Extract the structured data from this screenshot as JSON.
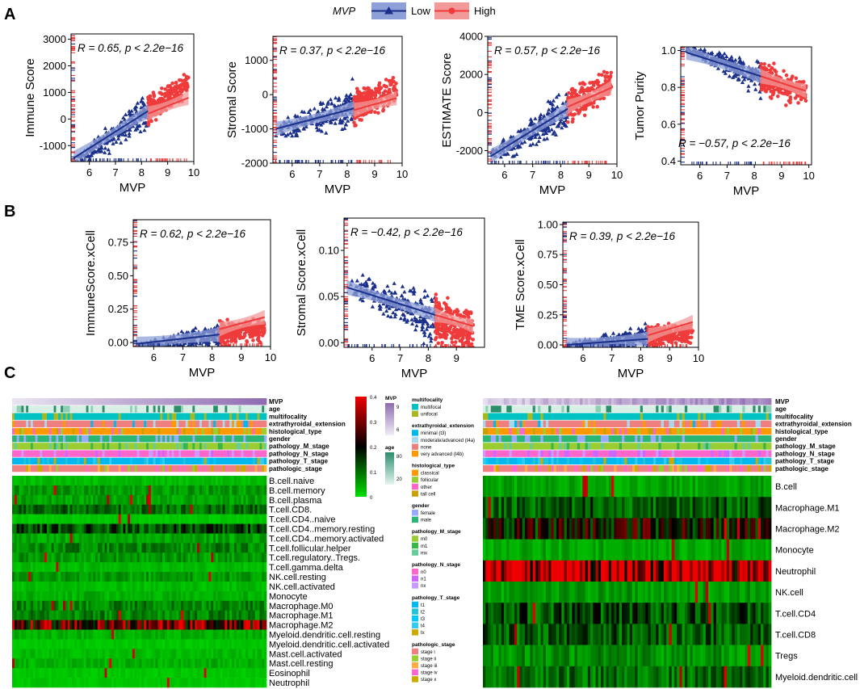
{
  "figure": {
    "panel_letters": [
      "A",
      "B",
      "C"
    ]
  },
  "legend": {
    "title": "MVP",
    "items": [
      {
        "label": "Low",
        "color": "#1a2f8a",
        "band": "#8fa0d8",
        "marker": "triangle"
      },
      {
        "label": "High",
        "color": "#ef3b3b",
        "band": "#f29a9a",
        "marker": "circle"
      }
    ]
  },
  "chart_data": [
    {
      "id": "A1",
      "type": "scatter",
      "panel": "A",
      "xlabel": "MVP",
      "ylabel": "Immune Score",
      "xlim": [
        5.3,
        10
      ],
      "ylim": [
        -1600,
        3200
      ],
      "xticks": [
        6,
        7,
        8,
        9,
        10
      ],
      "yticks": [
        -1000,
        0,
        1000,
        2000,
        3000
      ],
      "r": "0.65",
      "p": "2.2e-16",
      "annotation": "R = 0.65, p < 2.2e−16",
      "annotation_pos": "top-left",
      "cut": 8.25,
      "xrange": [
        5.4,
        9.8
      ],
      "trend": {
        "slope": 680,
        "intercept": -5300
      },
      "noise": 450,
      "lowband": 200,
      "regression": {
        "low": {
          "x": [
            5.4,
            8.25
          ],
          "y": [
            -1470,
            300
          ]
        },
        "high": {
          "x": [
            8.25,
            9.8
          ],
          "y": [
            200,
            800
          ]
        }
      }
    },
    {
      "id": "A2",
      "type": "scatter",
      "panel": "A",
      "xlabel": "MVP",
      "ylabel": "Stromal Score",
      "xlim": [
        5.3,
        10
      ],
      "ylim": [
        -2000,
        1700
      ],
      "xticks": [
        6,
        7,
        8,
        9,
        10
      ],
      "yticks": [
        -2000,
        -1000,
        0,
        1000
      ],
      "r": "0.37",
      "p": "2.2e-16",
      "annotation": "R = 0.37, p < 2.2e−16",
      "annotation_pos": "top-left",
      "cut": 8.25,
      "xrange": [
        5.4,
        9.8
      ],
      "trend": {
        "slope": 270,
        "intercept": -2550
      },
      "noise": 420,
      "lowband": 220,
      "regression": {
        "low": {
          "x": [
            5.4,
            8.25
          ],
          "y": [
            -1000,
            -400
          ]
        },
        "high": {
          "x": [
            8.25,
            9.8
          ],
          "y": [
            -450,
            -100
          ]
        }
      }
    },
    {
      "id": "A3",
      "type": "scatter",
      "panel": "A",
      "xlabel": "MVP",
      "ylabel": "ESTIMATE Score",
      "xlim": [
        5.4,
        10
      ],
      "ylim": [
        -2700,
        4000
      ],
      "xticks": [
        6,
        7,
        8,
        9,
        10
      ],
      "yticks": [
        -2000,
        0,
        2000,
        4000
      ],
      "r": "0.57",
      "p": "2.2e-16",
      "annotation": "R = 0.57, p < 2.2e−16",
      "annotation_pos": "top-left",
      "cut": 8.25,
      "xrange": [
        5.5,
        9.8
      ],
      "trend": {
        "slope": 900,
        "intercept": -7200
      },
      "noise": 750,
      "lowband": 400,
      "regression": {
        "low": {
          "x": [
            5.5,
            8.25
          ],
          "y": [
            -2300,
            200
          ]
        },
        "high": {
          "x": [
            8.25,
            9.8
          ],
          "y": [
            300,
            1300
          ]
        }
      }
    },
    {
      "id": "A4",
      "type": "scatter",
      "panel": "A",
      "xlabel": "MVP",
      "ylabel": "Tumor Purity",
      "xlim": [
        5.3,
        10.1
      ],
      "ylim": [
        0.38,
        1.02
      ],
      "xticks": [
        6,
        7,
        8,
        9,
        10
      ],
      "yticks": [
        0.4,
        0.6,
        0.8,
        1.0
      ],
      "yticklabels": [
        "0.4",
        "0.6",
        "0.8",
        "1.0"
      ],
      "r": "-0.57",
      "p": "2.2e-16",
      "annotation": "R = −0.57, p < 2.2e−16",
      "annotation_pos": "bottom-right",
      "cut": 8.25,
      "xrange": [
        5.5,
        9.9
      ],
      "trend": {
        "slope": -0.055,
        "intercept": 1.31
      },
      "noise": 0.07,
      "lowband": 0.02,
      "regression": {
        "low": {
          "x": [
            5.5,
            8.25
          ],
          "y": [
            0.99,
            0.86
          ]
        },
        "high": {
          "x": [
            8.25,
            9.9
          ],
          "y": [
            0.86,
            0.78
          ]
        }
      }
    },
    {
      "id": "B1",
      "type": "scatter",
      "panel": "B",
      "xlabel": "MVP",
      "ylabel": "ImmuneScore.xCell",
      "xlim": [
        5.3,
        10
      ],
      "ylim": [
        -0.03,
        0.92
      ],
      "xticks": [
        6,
        7,
        8,
        9,
        10
      ],
      "yticks": [
        0.0,
        0.25,
        0.5,
        0.75
      ],
      "yticklabels": [
        "0.00",
        "0.25",
        "0.50",
        "0.75"
      ],
      "r": "0.62",
      "p": "2.2e-16",
      "annotation": "R = 0.62, p < 2.2e−16",
      "annotation_pos": "top-left",
      "cut": 8.25,
      "xrange": [
        5.4,
        9.8
      ],
      "trend": {
        "slope": 0.03,
        "intercept": -0.19
      },
      "noise": 0.08,
      "lowband": 0.02,
      "regression": {
        "low": {
          "x": [
            5.4,
            8.25
          ],
          "y": [
            -0.01,
            0.06
          ]
        },
        "high": {
          "x": [
            8.25,
            9.8
          ],
          "y": [
            0.1,
            0.19
          ]
        }
      }
    },
    {
      "id": "B2",
      "type": "scatter",
      "panel": "B",
      "xlabel": "MVP",
      "ylabel": "Stromal Score.xCell",
      "xlim": [
        5.0,
        10.0
      ],
      "ylim": [
        -0.005,
        0.135
      ],
      "xticks": [
        6,
        7,
        8,
        9
      ],
      "yticks": [
        0.0,
        0.05,
        0.1
      ],
      "yticklabels": [
        "0.00",
        "0.05",
        "0.10"
      ],
      "r": "-0.42",
      "p": "2.2e-16",
      "annotation": "R = −0.42, p < 2.2e−16",
      "annotation_pos": "top-left",
      "cut": 8.25,
      "xrange": [
        5.1,
        9.6
      ],
      "trend": {
        "slope": -0.012,
        "intercept": 0.125
      },
      "noise": 0.025,
      "lowband": 0.008,
      "regression": {
        "low": {
          "x": [
            5.1,
            8.25
          ],
          "y": [
            0.06,
            0.03
          ]
        },
        "high": {
          "x": [
            8.25,
            9.6
          ],
          "y": [
            0.03,
            0.018
          ]
        }
      }
    },
    {
      "id": "B3",
      "type": "scatter",
      "panel": "B",
      "xlabel": "MVP",
      "ylabel": "TME Score.xCell",
      "xlim": [
        5.3,
        10
      ],
      "ylim": [
        -0.02,
        1.02
      ],
      "xticks": [
        6,
        7,
        8,
        9,
        10
      ],
      "yticks": [
        0.0,
        0.25,
        0.5,
        0.75,
        1.0
      ],
      "yticklabels": [
        "0.00",
        "0.25",
        "0.50",
        "0.75",
        "1.00"
      ],
      "r": "0.39",
      "p": "2.2e-16",
      "annotation": "R = 0.39, p < 2.2e−16",
      "annotation_pos": "top-left",
      "cut": 8.25,
      "xrange": [
        5.4,
        9.8
      ],
      "trend": {
        "slope": 0.025,
        "intercept": -0.14
      },
      "noise": 0.08,
      "lowband": 0.02,
      "regression": {
        "low": {
          "x": [
            5.4,
            8.25
          ],
          "y": [
            0.0,
            0.05
          ]
        },
        "high": {
          "x": [
            8.25,
            9.8
          ],
          "y": [
            0.08,
            0.19
          ]
        }
      }
    },
    {
      "id": "C1",
      "type": "heatmap",
      "panel": "C",
      "annotation_rows": [
        "MVP",
        "age",
        "multifocality",
        "extrathyroidal_extension",
        "histological_type",
        "gender",
        "pathology_M_stage",
        "pathology_N_stage",
        "pathology_T_stage",
        "pathologic_stage"
      ],
      "rows": [
        "B.cell.naive",
        "B.cell.memory",
        "B.cell.plasma",
        "T.cell.CD8.",
        "T.cell.CD4..naive",
        "T.cell.CD4..memory.resting",
        "T.cell.CD4..memory.activated",
        "T.cell.follicular.helper",
        "T.cell.regulatory..Tregs.",
        "T.cell.gamma.delta",
        "NK.cell.resting",
        "NK.cell.activated",
        "Monocyte",
        "Macrophage.M0",
        "Macrophage.M1",
        "Macrophage.M2",
        "Myeloid.dendritic.cell.resting",
        "Myeloid.dendritic.cell.activated",
        "Mast.cell.activated",
        "Mast.cell.resting",
        "Eosinophil",
        "Neutrophil"
      ],
      "row_levels": [
        0.03,
        0.06,
        0.05,
        0.1,
        0.02,
        0.14,
        0.05,
        0.08,
        0.06,
        0.03,
        0.06,
        0.03,
        0.04,
        0.08,
        0.08,
        0.28,
        0.04,
        0.02,
        0.03,
        0.04,
        0.02,
        0.02
      ],
      "colorbar": {
        "min": 0,
        "max": 0.4,
        "ticks": [
          0,
          0.1,
          0.2,
          0.3,
          0.4
        ],
        "colors": [
          "#00dd00",
          "#000000",
          "#ee0000"
        ]
      }
    },
    {
      "id": "C2",
      "type": "heatmap",
      "panel": "C",
      "annotation_rows": [
        "MVP",
        "age",
        "multifocality",
        "extrathyroidal_extension",
        "histological_type",
        "gender",
        "pathology_M_stage",
        "pathology_N_stage",
        "pathology_T_stage",
        "pathologic_stage"
      ],
      "rows": [
        "B.cell",
        "Macrophage.M1",
        "Macrophage.M2",
        "Monocyte",
        "Neutrophil",
        "NK.cell",
        "T.cell.CD4",
        "T.cell.CD8",
        "Tregs",
        "Myeloid.dendritic.cell"
      ],
      "row_levels": [
        0.05,
        0.12,
        0.2,
        0.05,
        0.36,
        0.06,
        0.14,
        0.12,
        0.07,
        0.1
      ],
      "colorbar": {
        "min": 0,
        "max": 0.4,
        "ticks": [
          0,
          0.1,
          0.2,
          0.3,
          0.4
        ],
        "colors": [
          "#00dd00",
          "#000000",
          "#ee0000"
        ]
      }
    }
  ],
  "mvp_scale": {
    "title": "MVP",
    "ticks": [
      "9",
      "6"
    ],
    "colors": [
      "#f2eef7",
      "#8e6bb0"
    ]
  },
  "age_scale": {
    "title": "age",
    "ticks": [
      "80",
      "20"
    ],
    "colors": [
      "#e5f5f0",
      "#2c8e6a"
    ]
  },
  "annotation_legends": [
    {
      "title": "multifocality",
      "items": [
        {
          "label": "multifocal",
          "color": "#00c2c2"
        },
        {
          "label": "unifocal",
          "color": "#a8b820"
        }
      ]
    },
    {
      "title": "extrathyroidal_extension",
      "items": [
        {
          "label": "minimal (t3)",
          "color": "#00b8f0"
        },
        {
          "label": "moderate/advanced (t4a)",
          "color": "#a8d8f0"
        },
        {
          "label": "none",
          "color": "#f08080"
        },
        {
          "label": "very advanced (t4b)",
          "color": "#ff9900"
        }
      ]
    },
    {
      "title": "histological_type",
      "items": [
        {
          "label": "classical",
          "color": "#ff9900"
        },
        {
          "label": "follicular",
          "color": "#9acd32"
        },
        {
          "label": "other",
          "color": "#ff66cc"
        },
        {
          "label": "tall cell",
          "color": "#c8a000"
        }
      ]
    },
    {
      "title": "gender",
      "items": [
        {
          "label": "female",
          "color": "#99aaff"
        },
        {
          "label": "male",
          "color": "#2bb673"
        }
      ]
    },
    {
      "title": "pathology_M_stage",
      "items": [
        {
          "label": "m0",
          "color": "#9acd32"
        },
        {
          "label": "m1",
          "color": "#3ab54a"
        },
        {
          "label": "mx",
          "color": "#66cc99"
        }
      ]
    },
    {
      "title": "pathology_N_stage",
      "items": [
        {
          "label": "n0",
          "color": "#ff66cc"
        },
        {
          "label": "n1",
          "color": "#cc66ff"
        },
        {
          "label": "nx",
          "color": "#cc99ff"
        }
      ]
    },
    {
      "title": "pathology_T_stage",
      "items": [
        {
          "label": "t1",
          "color": "#00b8f0"
        },
        {
          "label": "t2",
          "color": "#22c3d6"
        },
        {
          "label": "t3",
          "color": "#00c8ff"
        },
        {
          "label": "t4",
          "color": "#33ccee"
        },
        {
          "label": "tx",
          "color": "#ccaa00"
        }
      ]
    },
    {
      "title": "pathologic_stage",
      "items": [
        {
          "label": "stage i",
          "color": "#f08080"
        },
        {
          "label": "stage ii",
          "color": "#9acd32"
        },
        {
          "label": "stage iii",
          "color": "#ffaa44"
        },
        {
          "label": "stage iv",
          "color": "#ff66cc"
        },
        {
          "label": "stage x",
          "color": "#ccaa00"
        }
      ]
    }
  ],
  "annotation_row_colors": {
    "MVP": [
      "#e9e4f1",
      "#8e6bb0"
    ],
    "age": [
      "#d8efe6",
      "#2c8e6a",
      "#8fd0b4"
    ],
    "multifocality": [
      "#00c2c2",
      "#a8b820"
    ],
    "extrathyroidal_extension": [
      "#f08080",
      "#00b8f0",
      "#a8d8f0",
      "#ff9900"
    ],
    "histological_type": [
      "#ff9900",
      "#9acd32",
      "#ff66cc",
      "#c8a000"
    ],
    "gender": [
      "#2bb673",
      "#99aaff"
    ],
    "pathology_M_stage": [
      "#9acd32",
      "#66cc99",
      "#3ab54a"
    ],
    "pathology_N_stage": [
      "#ff66cc",
      "#cc66ff",
      "#cc99ff"
    ],
    "pathology_T_stage": [
      "#00b8f0",
      "#22c3d6",
      "#00c8ff",
      "#33ccee",
      "#ccaa00"
    ],
    "pathologic_stage": [
      "#f08080",
      "#9acd32",
      "#ffaa44",
      "#ff66cc",
      "#ccaa00"
    ]
  }
}
